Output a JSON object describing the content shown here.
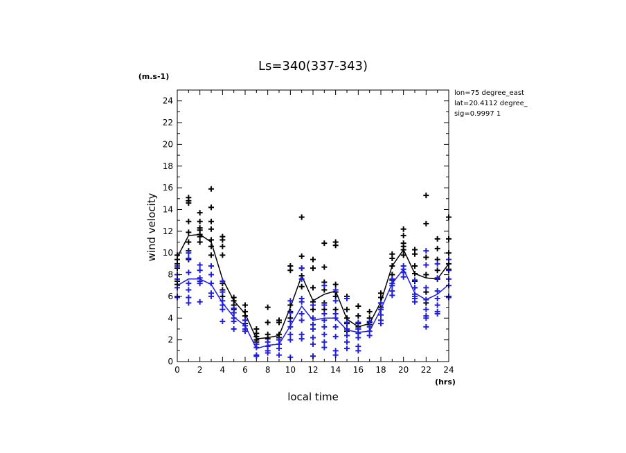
{
  "chart_data": {
    "type": "scatter",
    "title": "Ls=340(337-343)",
    "xlabel": "local time",
    "ylabel": "wind velocity",
    "x_unit": "(hrs)",
    "y_unit": "(m.s-1)",
    "xlim": [
      0,
      24
    ],
    "ylim": [
      0,
      25
    ],
    "x_ticks": [
      "0",
      "2",
      "4",
      "6",
      "8",
      "10",
      "12",
      "14",
      "16",
      "18",
      "20",
      "22",
      "24"
    ],
    "y_ticks": [
      "0",
      "2",
      "4",
      "6",
      "8",
      "10",
      "12",
      "14",
      "16",
      "18",
      "20",
      "22",
      "24"
    ],
    "annotations": [
      "lon=75 degree_east",
      "lat=20.4112 degree_",
      "sig=0.9997 1"
    ],
    "grid": false,
    "series": [
      {
        "color": "#000000",
        "mean_x": [
          0,
          1,
          2,
          3,
          4,
          5,
          6,
          7,
          8,
          9,
          10,
          11,
          12,
          13,
          14,
          15,
          16,
          17,
          18,
          19,
          20,
          21,
          22,
          23,
          24
        ],
        "mean_y": [
          9.6,
          11.6,
          11.7,
          11.0,
          7.6,
          5.6,
          4.4,
          2.1,
          2.2,
          2.4,
          5.0,
          7.9,
          5.6,
          6.2,
          6.5,
          3.9,
          3.2,
          3.5,
          5.5,
          8.8,
          10.3,
          8.1,
          7.7,
          7.6,
          9.0
        ],
        "points": [
          [
            0,
            9.8
          ],
          [
            0,
            9.0
          ],
          [
            0,
            8.6
          ],
          [
            0,
            7.4
          ],
          [
            0,
            7.1
          ],
          [
            0,
            9.4
          ],
          [
            1,
            15.1
          ],
          [
            1,
            14.8
          ],
          [
            1,
            14.6
          ],
          [
            1,
            12.9
          ],
          [
            1,
            11.9
          ],
          [
            1,
            11.0
          ],
          [
            1,
            10.2
          ],
          [
            1,
            9.4
          ],
          [
            2,
            13.7
          ],
          [
            2,
            12.9
          ],
          [
            2,
            12.3
          ],
          [
            2,
            12.1
          ],
          [
            2,
            11.7
          ],
          [
            2,
            11.5
          ],
          [
            2,
            11.0
          ],
          [
            3,
            15.9
          ],
          [
            3,
            14.2
          ],
          [
            3,
            12.9
          ],
          [
            3,
            12.2
          ],
          [
            3,
            11.2
          ],
          [
            3,
            10.6
          ],
          [
            3,
            9.8
          ],
          [
            4,
            11.5
          ],
          [
            4,
            11.2
          ],
          [
            4,
            10.6
          ],
          [
            4,
            9.8
          ],
          [
            4,
            7.2
          ],
          [
            4,
            6.6
          ],
          [
            4,
            6.0
          ],
          [
            5,
            5.9
          ],
          [
            5,
            5.6
          ],
          [
            5,
            5.2
          ],
          [
            5,
            4.8
          ],
          [
            5,
            4.5
          ],
          [
            6,
            5.2
          ],
          [
            6,
            4.6
          ],
          [
            6,
            4.2
          ],
          [
            6,
            3.8
          ],
          [
            6,
            3.5
          ],
          [
            7,
            3.0
          ],
          [
            7,
            2.6
          ],
          [
            7,
            2.3
          ],
          [
            7,
            2.0
          ],
          [
            7,
            1.8
          ],
          [
            8,
            5.0
          ],
          [
            8,
            3.6
          ],
          [
            8,
            2.5
          ],
          [
            8,
            2.1
          ],
          [
            9,
            3.8
          ],
          [
            9,
            3.6
          ],
          [
            9,
            2.5
          ],
          [
            9,
            2.2
          ],
          [
            10,
            8.8
          ],
          [
            10,
            8.4
          ],
          [
            10,
            5.2
          ],
          [
            10,
            4.6
          ],
          [
            10,
            4.0
          ],
          [
            11,
            13.3
          ],
          [
            11,
            9.7
          ],
          [
            11,
            8.6
          ],
          [
            11,
            7.9
          ],
          [
            11,
            6.9
          ],
          [
            12,
            9.4
          ],
          [
            12,
            8.6
          ],
          [
            12,
            6.8
          ],
          [
            12,
            5.5
          ],
          [
            12,
            4.8
          ],
          [
            13,
            10.9
          ],
          [
            13,
            8.7
          ],
          [
            13,
            7.3
          ],
          [
            13,
            6.6
          ],
          [
            13,
            5.4
          ],
          [
            13,
            4.8
          ],
          [
            14,
            11.0
          ],
          [
            14,
            10.7
          ],
          [
            14,
            7.1
          ],
          [
            14,
            6.4
          ],
          [
            14,
            6.0
          ],
          [
            14,
            4.8
          ],
          [
            15,
            6.0
          ],
          [
            15,
            4.8
          ],
          [
            15,
            4.0
          ],
          [
            15,
            3.5
          ],
          [
            15,
            2.8
          ],
          [
            16,
            5.1
          ],
          [
            16,
            4.2
          ],
          [
            16,
            3.5
          ],
          [
            16,
            3.2
          ],
          [
            16,
            3.0
          ],
          [
            17,
            4.6
          ],
          [
            17,
            4.0
          ],
          [
            17,
            3.6
          ],
          [
            17,
            3.4
          ],
          [
            18,
            6.3
          ],
          [
            18,
            5.9
          ],
          [
            18,
            5.4
          ],
          [
            18,
            5.0
          ],
          [
            18,
            4.8
          ],
          [
            19,
            9.9
          ],
          [
            19,
            9.5
          ],
          [
            19,
            8.8
          ],
          [
            19,
            8.0
          ],
          [
            19,
            7.5
          ],
          [
            20,
            12.2
          ],
          [
            20,
            11.6
          ],
          [
            20,
            10.9
          ],
          [
            20,
            10.6
          ],
          [
            20,
            10.3
          ],
          [
            20,
            9.8
          ],
          [
            21,
            10.3
          ],
          [
            21,
            9.9
          ],
          [
            21,
            8.8
          ],
          [
            21,
            8.1
          ],
          [
            21,
            7.4
          ],
          [
            21,
            6.8
          ],
          [
            22,
            15.3
          ],
          [
            22,
            12.7
          ],
          [
            22,
            9.6
          ],
          [
            22,
            8.0
          ],
          [
            22,
            6.4
          ],
          [
            22,
            5.4
          ],
          [
            23,
            11.3
          ],
          [
            23,
            10.4
          ],
          [
            23,
            9.4
          ],
          [
            23,
            8.4
          ],
          [
            23,
            7.6
          ],
          [
            24,
            13.3
          ],
          [
            24,
            11.3
          ],
          [
            24,
            10.0
          ],
          [
            24,
            9.0
          ],
          [
            24,
            8.5
          ]
        ]
      },
      {
        "color": "#1f1fe0",
        "mean_x": [
          0,
          1,
          2,
          3,
          4,
          5,
          6,
          7,
          8,
          9,
          10,
          11,
          12,
          13,
          14,
          15,
          16,
          17,
          18,
          19,
          20,
          21,
          22,
          23,
          24
        ],
        "mean_y": [
          7.0,
          7.6,
          7.6,
          7.1,
          5.4,
          4.1,
          3.3,
          1.2,
          1.5,
          1.6,
          3.3,
          5.1,
          3.8,
          4.0,
          4.0,
          2.9,
          2.7,
          2.8,
          4.8,
          7.2,
          8.5,
          6.3,
          5.7,
          6.2,
          7.1
        ],
        "points": [
          [
            0,
            8.8
          ],
          [
            0,
            8.0
          ],
          [
            0,
            7.6
          ],
          [
            0,
            6.8
          ],
          [
            0,
            6.0
          ],
          [
            0,
            5.9
          ],
          [
            1,
            10.0
          ],
          [
            1,
            9.5
          ],
          [
            1,
            8.2
          ],
          [
            1,
            7.2
          ],
          [
            1,
            6.6
          ],
          [
            1,
            5.9
          ],
          [
            1,
            5.4
          ],
          [
            2,
            8.9
          ],
          [
            2,
            8.4
          ],
          [
            2,
            7.7
          ],
          [
            2,
            7.4
          ],
          [
            2,
            7.2
          ],
          [
            2,
            5.5
          ],
          [
            3,
            8.8
          ],
          [
            3,
            8.0
          ],
          [
            3,
            7.2
          ],
          [
            3,
            6.3
          ],
          [
            3,
            6.0
          ],
          [
            4,
            7.4
          ],
          [
            4,
            6.4
          ],
          [
            4,
            5.6
          ],
          [
            4,
            5.2
          ],
          [
            4,
            4.8
          ],
          [
            4,
            3.7
          ],
          [
            5,
            4.9
          ],
          [
            5,
            4.5
          ],
          [
            5,
            4.0
          ],
          [
            5,
            3.7
          ],
          [
            5,
            3.0
          ],
          [
            6,
            3.8
          ],
          [
            6,
            3.3
          ],
          [
            6,
            3.0
          ],
          [
            6,
            2.8
          ],
          [
            7,
            1.6
          ],
          [
            7,
            1.3
          ],
          [
            7,
            0.6
          ],
          [
            7,
            0.5
          ],
          [
            8,
            1.8
          ],
          [
            8,
            1.4
          ],
          [
            8,
            1.0
          ],
          [
            8,
            0.8
          ],
          [
            9,
            2.0
          ],
          [
            9,
            1.6
          ],
          [
            9,
            1.2
          ],
          [
            9,
            0.6
          ],
          [
            10,
            5.6
          ],
          [
            10,
            4.5
          ],
          [
            10,
            3.7
          ],
          [
            10,
            3.2
          ],
          [
            10,
            2.5
          ],
          [
            10,
            2.0
          ],
          [
            10,
            0.4
          ],
          [
            11,
            8.6
          ],
          [
            11,
            7.6
          ],
          [
            11,
            5.8
          ],
          [
            11,
            5.5
          ],
          [
            11,
            4.4
          ],
          [
            11,
            3.8
          ],
          [
            11,
            2.5
          ],
          [
            11,
            2.1
          ],
          [
            12,
            5.2
          ],
          [
            12,
            4.0
          ],
          [
            12,
            3.4
          ],
          [
            12,
            3.0
          ],
          [
            12,
            2.2
          ],
          [
            12,
            1.6
          ],
          [
            12,
            0.5
          ],
          [
            13,
            7.0
          ],
          [
            13,
            5.2
          ],
          [
            13,
            4.4
          ],
          [
            13,
            3.8
          ],
          [
            13,
            3.2
          ],
          [
            13,
            2.5
          ],
          [
            13,
            1.8
          ],
          [
            13,
            1.3
          ],
          [
            14,
            6.6
          ],
          [
            14,
            5.6
          ],
          [
            14,
            4.4
          ],
          [
            14,
            4.0
          ],
          [
            14,
            3.2
          ],
          [
            14,
            2.3
          ],
          [
            14,
            1.0
          ],
          [
            14,
            0.6
          ],
          [
            15,
            5.8
          ],
          [
            15,
            3.6
          ],
          [
            15,
            3.0
          ],
          [
            15,
            2.4
          ],
          [
            15,
            1.8
          ],
          [
            15,
            1.2
          ],
          [
            16,
            3.6
          ],
          [
            16,
            3.0
          ],
          [
            16,
            2.6
          ],
          [
            16,
            2.2
          ],
          [
            16,
            1.4
          ],
          [
            16,
            1.0
          ],
          [
            17,
            3.7
          ],
          [
            17,
            3.2
          ],
          [
            17,
            2.8
          ],
          [
            17,
            2.4
          ],
          [
            18,
            5.4
          ],
          [
            18,
            4.8
          ],
          [
            18,
            4.3
          ],
          [
            18,
            3.8
          ],
          [
            18,
            3.5
          ],
          [
            19,
            7.6
          ],
          [
            19,
            7.2
          ],
          [
            19,
            7.0
          ],
          [
            19,
            6.5
          ],
          [
            19,
            6.1
          ],
          [
            20,
            8.8
          ],
          [
            20,
            8.5
          ],
          [
            20,
            8.2
          ],
          [
            20,
            7.8
          ],
          [
            21,
            7.5
          ],
          [
            21,
            6.8
          ],
          [
            21,
            6.2
          ],
          [
            21,
            6.0
          ],
          [
            21,
            5.8
          ],
          [
            21,
            5.5
          ],
          [
            22,
            10.2
          ],
          [
            22,
            8.9
          ],
          [
            22,
            6.8
          ],
          [
            22,
            5.7
          ],
          [
            22,
            4.8
          ],
          [
            22,
            4.2
          ],
          [
            22,
            4.0
          ],
          [
            22,
            3.2
          ],
          [
            23,
            9.0
          ],
          [
            23,
            7.7
          ],
          [
            23,
            6.5
          ],
          [
            23,
            5.8
          ],
          [
            23,
            5.2
          ],
          [
            23,
            4.6
          ],
          [
            23,
            4.4
          ],
          [
            24,
            9.4
          ],
          [
            24,
            8.4
          ],
          [
            24,
            7.6
          ],
          [
            24,
            7.0
          ],
          [
            24,
            6.0
          ],
          [
            24,
            5.9
          ]
        ]
      }
    ]
  }
}
